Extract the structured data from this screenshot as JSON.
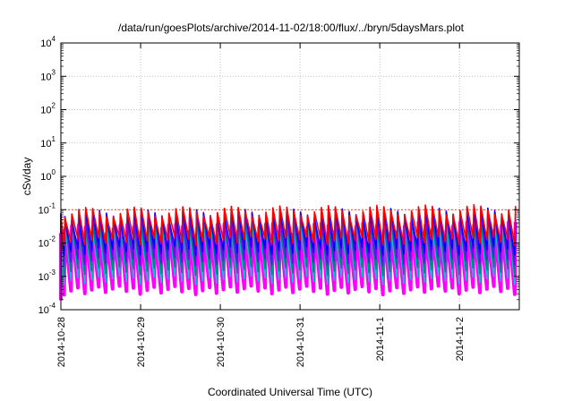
{
  "chart_data": {
    "type": "line",
    "title": "/data/run/goesPlots/archive/2014-11-02/18:00/flux/../bryn/5daysMars.plot",
    "xlabel": "Coordinated Universal Time (UTC)",
    "ylabel": "cSv/day",
    "y_scale": "log",
    "ylim": [
      0.0001,
      10000
    ],
    "xlim": [
      "2014-10-28",
      "2014-11-02 18:00"
    ],
    "grid": true,
    "legend": "none",
    "x_ticks": [
      "2014-10-28",
      "2014-10-29",
      "2014-10-30",
      "2014-10-31",
      "2014-11-1",
      "2014-11-2"
    ],
    "y_ticks": [
      {
        "value": 0.0001,
        "base": "10",
        "exp": "-4"
      },
      {
        "value": 0.001,
        "base": "10",
        "exp": "-3"
      },
      {
        "value": 0.01,
        "base": "10",
        "exp": "-2"
      },
      {
        "value": 0.1,
        "base": "10",
        "exp": "-1"
      },
      {
        "value": 1,
        "base": "10",
        "exp": "0"
      },
      {
        "value": 10,
        "base": "10",
        "exp": "1"
      },
      {
        "value": 100,
        "base": "10",
        "exp": "2"
      },
      {
        "value": 1000,
        "base": "10",
        "exp": "3"
      },
      {
        "value": 10000,
        "base": "10",
        "exp": "4"
      }
    ],
    "reference_line": {
      "value": 0.1,
      "color": "#ff0000"
    },
    "pattern": {
      "cycles_per_day": 11.5,
      "first_peak_offset_days": 0.04
    },
    "series": [
      {
        "color": "#ff00ff",
        "peak": 0.03,
        "trough": 0.0004
      },
      {
        "color": "#00c8c8",
        "peak": 0.04,
        "trough": 0.0008
      },
      {
        "color": "#008080",
        "peak": 0.055,
        "trough": 0.0015
      },
      {
        "color": "#7a00ff",
        "peak": 0.07,
        "trough": 0.003
      },
      {
        "color": "#0000ff",
        "peak": 0.085,
        "trough": 0.006
      },
      {
        "color": "#ff0000",
        "peak": 0.1,
        "trough": 0.012
      }
    ]
  }
}
